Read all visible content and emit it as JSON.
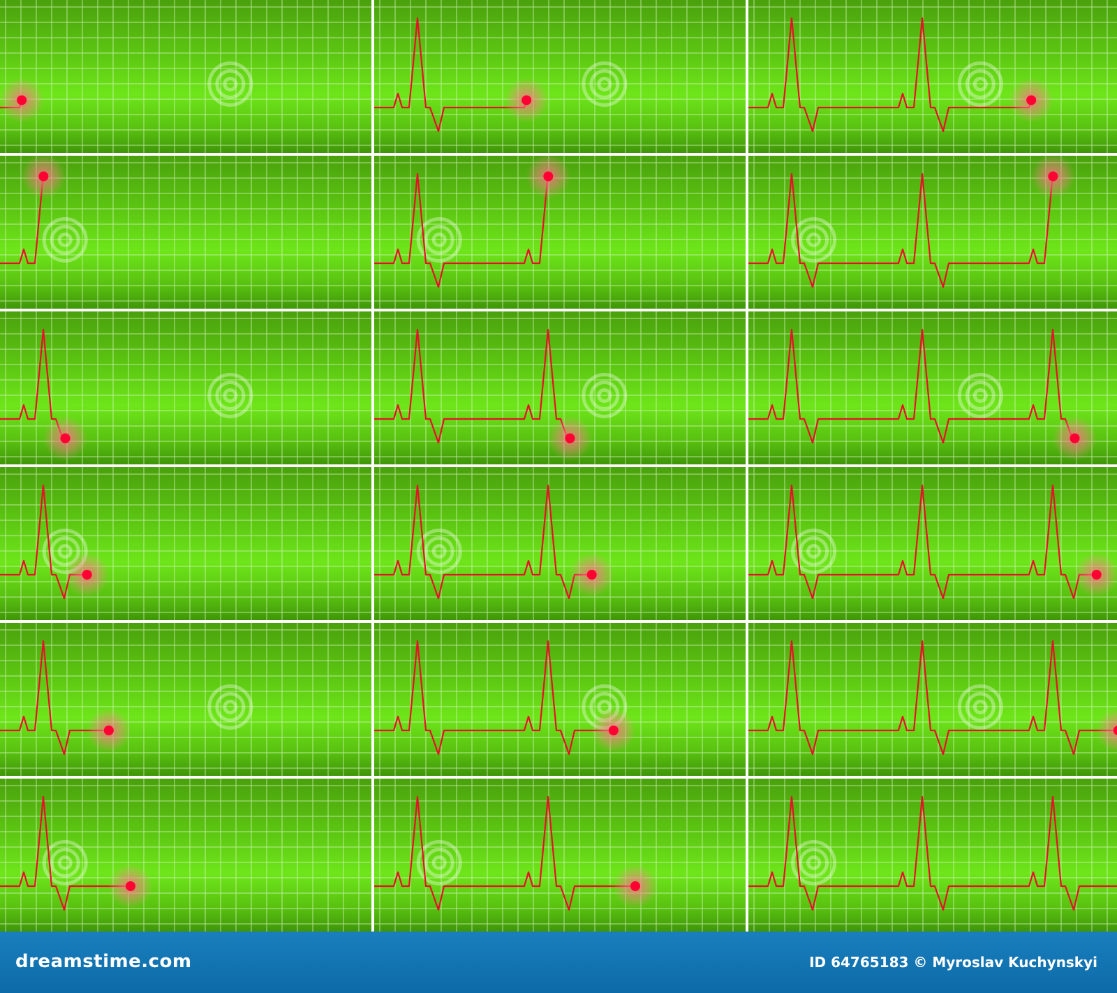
{
  "footer": {
    "brand": "dreamstime.com",
    "credit": "ID 64765183 © Myroslav Kuchynskyi"
  },
  "watermark": {
    "text": "dreamstime",
    "logo": "dreamstime-spiral-logo"
  },
  "monitor": {
    "columns": 3,
    "rows": 6,
    "background_top_color": "#4aa10c",
    "background_mid_color": "#6ee61a",
    "grid_line_color": "#d9f5c4",
    "trace_color": "#e8102a",
    "cursor_color": "#ff0033",
    "cursor_glow_color": "#ff5577",
    "divider_color": "#ffffff"
  }
}
